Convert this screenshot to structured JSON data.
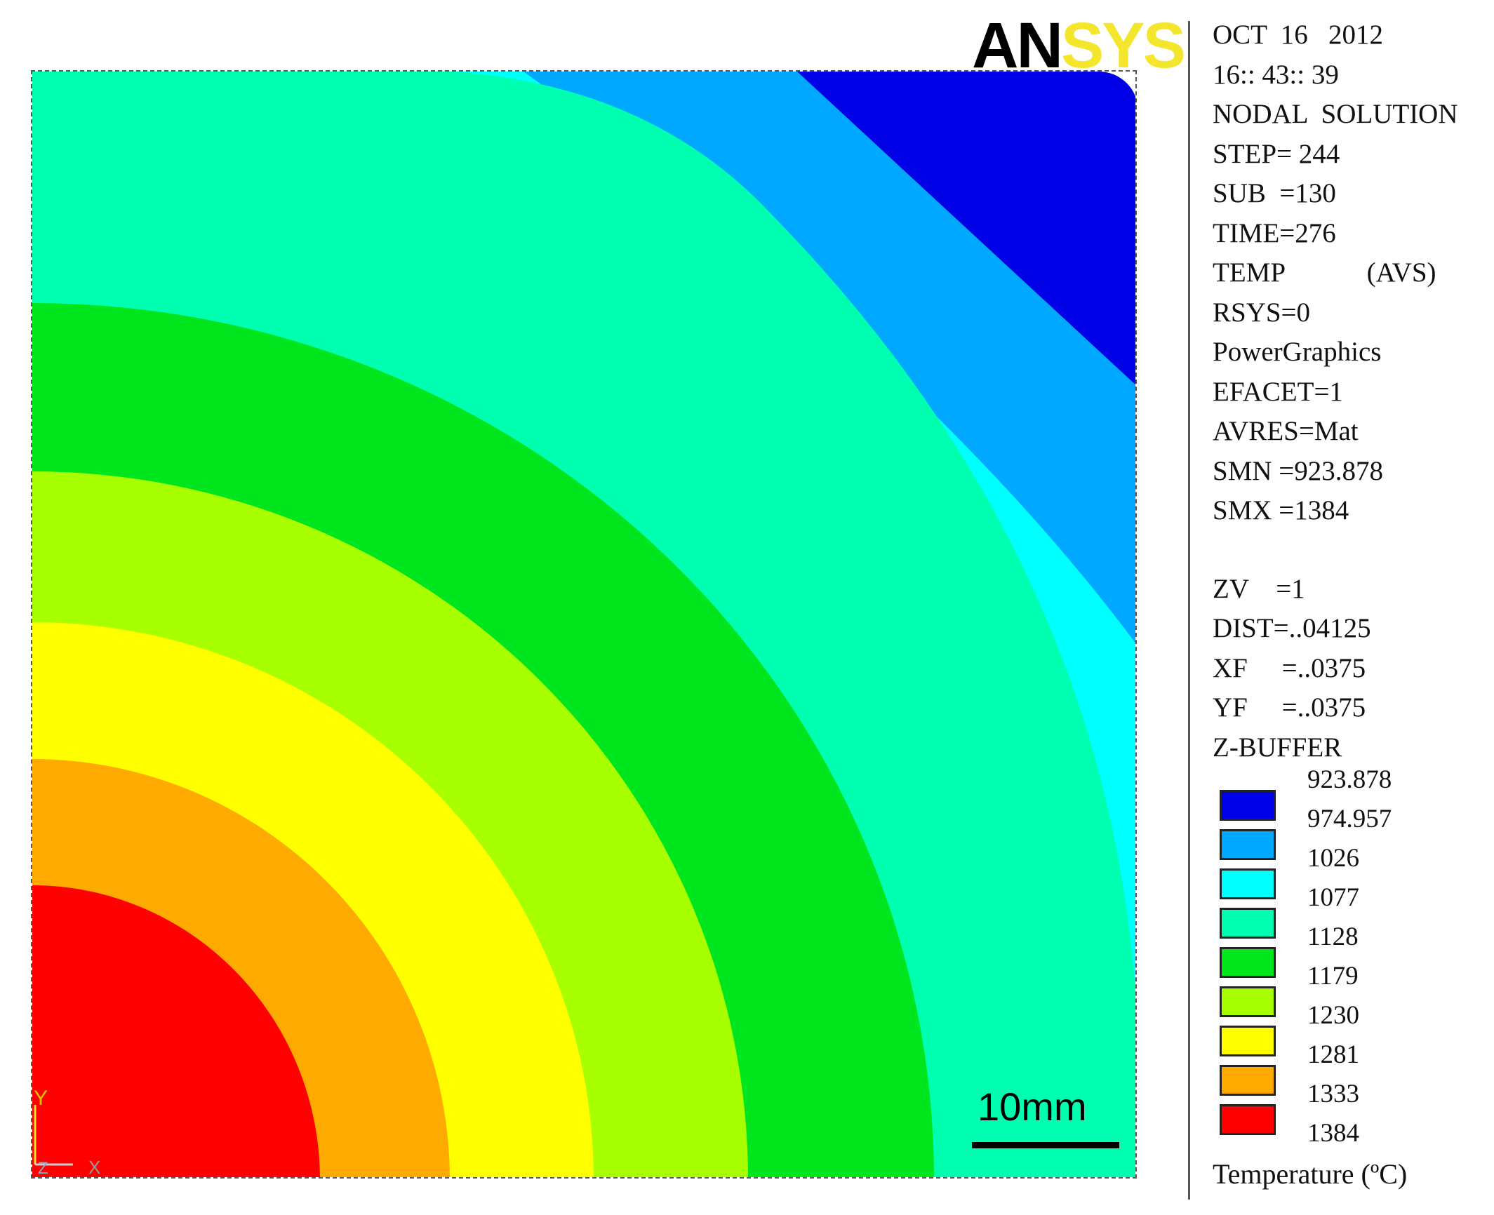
{
  "logo": {
    "part1": "AN",
    "part2": "SYS"
  },
  "info": {
    "lines": [
      "OCT  16   2012",
      "16:: 43:: 39",
      "NODAL  SOLUTION",
      "STEP= 244",
      "SUB  =130",
      "TIME=276",
      "TEMP            (AVS)",
      "RSYS=0",
      "PowerGraphics",
      "EFACET=1",
      "AVRES=Mat",
      "SMN =923.878",
      "SMX =1384"
    ],
    "view_lines": [
      "ZV    =1",
      "DIST=..04125",
      "XF     =..0375",
      "YF     =..0375",
      "Z-BUFFER"
    ]
  },
  "legend": {
    "values": [
      "923.878",
      "974.957",
      "1026",
      "1077",
      "1128",
      "1179",
      "1230",
      "1281",
      "1333",
      "1384"
    ],
    "colors": [
      "#0000e6",
      "#00a8ff",
      "#00ffff",
      "#00ffb0",
      "#00e61e",
      "#a8ff00",
      "#ffff00",
      "#ffaa00",
      "#ff0000"
    ],
    "title": "Temperature (ºC)"
  },
  "scale_bar": {
    "label": "10mm"
  },
  "triad": {
    "y_label": "Y",
    "x_label": "X",
    "z_label": "Z"
  }
}
